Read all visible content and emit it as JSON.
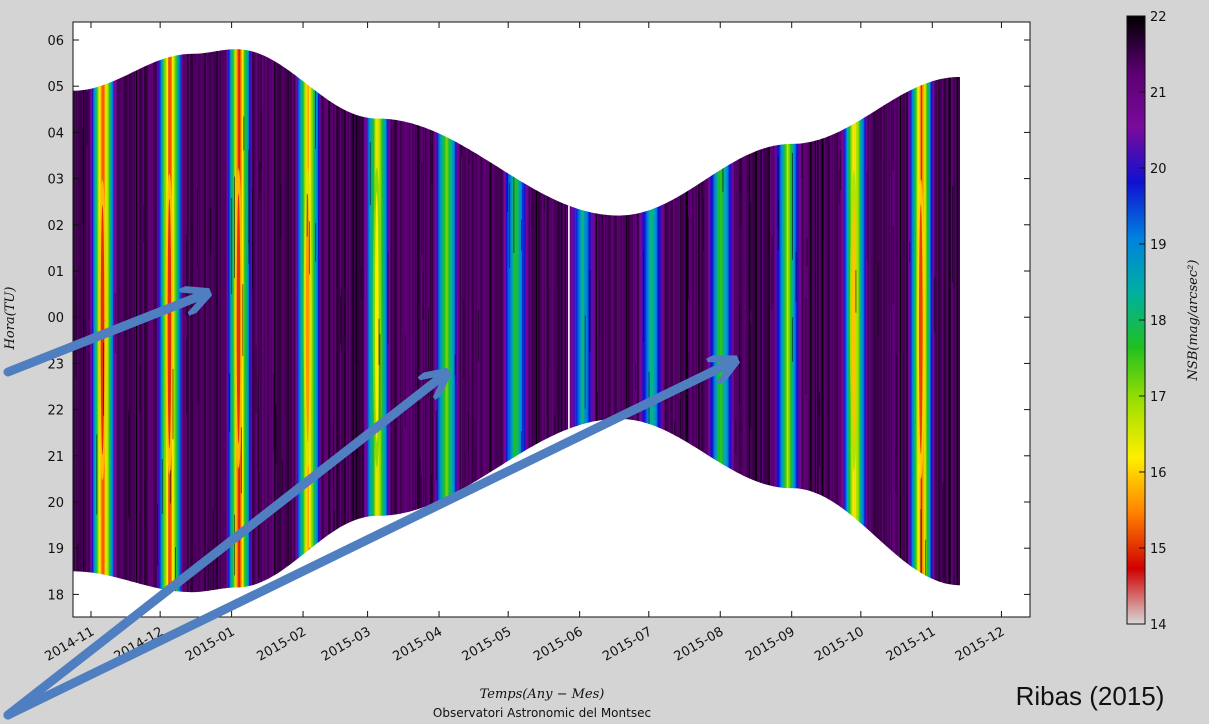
{
  "chart_data": {
    "type": "heatmap",
    "x_tick_labels": [
      "2014-11",
      "2014-12",
      "2015-01",
      "2015-02",
      "2015-03",
      "2015-04",
      "2015-05",
      "2015-06",
      "2015-07",
      "2015-08",
      "2015-09",
      "2015-10",
      "2015-11",
      "2015-12"
    ],
    "y_tick_labels": [
      "06",
      "05",
      "04",
      "03",
      "02",
      "01",
      "00",
      "23",
      "22",
      "21",
      "20",
      "19",
      "18"
    ],
    "xlabel": "Temps(Any − Mes)",
    "ylabel": "Hora(TU)",
    "observatory": "Observatori Astronomic del Montsec",
    "credit": "Ribas (2015)",
    "colorbar": {
      "label": "NSB(mag/arcsec²)",
      "range": [
        14,
        22
      ],
      "tick_labels": [
        "22",
        "21",
        "20",
        "19",
        "18",
        "17",
        "16",
        "15",
        "14"
      ],
      "colormap": [
        "#d8d8d8",
        "#d00000",
        "#ff8000",
        "#ffee00",
        "#a0e000",
        "#20c020",
        "#00b0a0",
        "#0080e0",
        "#1010d0",
        "#7a0a9c",
        "#5a0070",
        "#000000"
      ]
    },
    "date_range": [
      "2014-10-24",
      "2015-11-13"
    ],
    "gap": [
      "2015-05-27",
      "2015-05-29"
    ],
    "night_envelope": {
      "dates": [
        "2014-10-24",
        "2014-12-15",
        "2015-01-03",
        "2015-03-05",
        "2015-06-18",
        "2015-09-01",
        "2015-11-13"
      ],
      "dusk_hour": [
        18.5,
        18.05,
        18.15,
        19.7,
        21.8,
        20.3,
        18.2
      ],
      "dawn_hour": [
        4.9,
        5.7,
        5.8,
        4.3,
        2.2,
        3.75,
        5.2
      ]
    },
    "bright_bands": [
      {
        "center": "2014-11-06",
        "min_nsb": 15.0
      },
      {
        "center": "2014-12-05",
        "min_nsb": 15.0
      },
      {
        "center": "2015-01-04",
        "min_nsb": 15.0
      },
      {
        "center": "2015-02-03",
        "min_nsb": 15.6
      },
      {
        "center": "2015-03-05",
        "min_nsb": 16.2
      },
      {
        "center": "2015-04-04",
        "min_nsb": 17.0
      },
      {
        "center": "2015-05-04",
        "min_nsb": 17.6
      },
      {
        "center": "2015-06-02",
        "min_nsb": 18.3
      },
      {
        "center": "2015-07-02",
        "min_nsb": 18.1
      },
      {
        "center": "2015-08-01",
        "min_nsb": 17.4
      },
      {
        "center": "2015-08-30",
        "min_nsb": 16.8
      },
      {
        "center": "2015-09-28",
        "min_nsb": 15.9
      },
      {
        "center": "2015-10-27",
        "min_nsb": 15.1
      }
    ],
    "grid": false
  }
}
